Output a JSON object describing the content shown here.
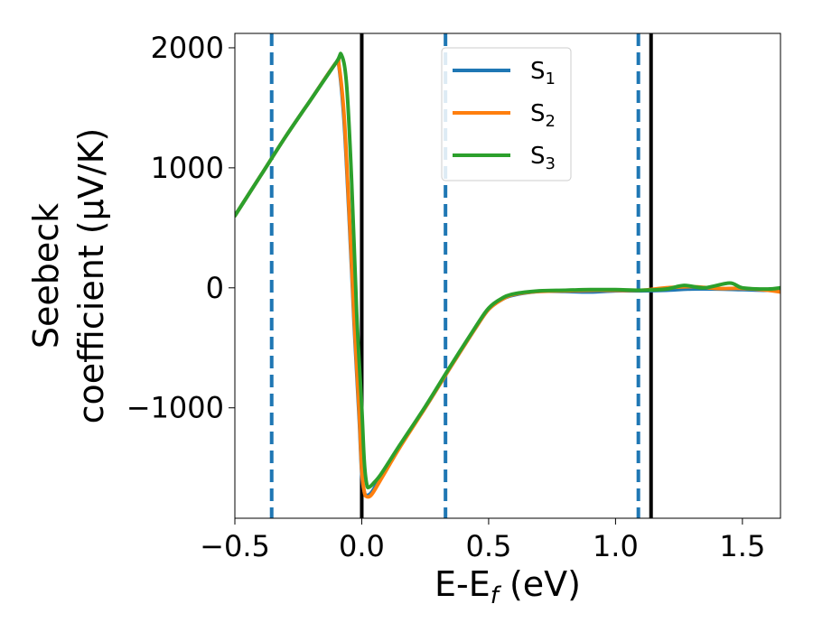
{
  "chart_data": {
    "type": "line",
    "xlabel": "E-E",
    "xlabel_sub": "f",
    "xlabel_unit": " (eV)",
    "ylabel_line1": "Seebeck",
    "ylabel_line2": "coefficient  (μV/K)",
    "xlim": [
      -0.5,
      1.65
    ],
    "ylim": [
      -1920,
      2120
    ],
    "x_ticks": [
      -0.5,
      0.0,
      0.5,
      1.0,
      1.5
    ],
    "x_tick_labels": [
      "−0.5",
      "0.0",
      "0.5",
      "1.0",
      "1.5"
    ],
    "y_ticks": [
      -1000,
      0,
      1000,
      2000
    ],
    "y_tick_labels": [
      "−1000",
      "0",
      "1000",
      "2000"
    ],
    "grid": false,
    "legend_position": "top-center",
    "vlines_solid": [
      0.0,
      1.14
    ],
    "vlines_dashed": [
      -0.355,
      0.33,
      1.09
    ],
    "vline_solid_color": "#000000",
    "vline_dashed_color": "#1f77b4",
    "series": [
      {
        "name": "S",
        "subscript": "1",
        "color": "#1f77b4",
        "x": [
          -0.5,
          -0.4,
          -0.3,
          -0.2,
          -0.1,
          -0.09,
          -0.07,
          -0.05,
          -0.03,
          -0.01,
          0.0,
          0.01,
          0.02,
          0.04,
          0.08,
          0.15,
          0.25,
          0.35,
          0.45,
          0.5,
          0.55,
          0.6,
          0.7,
          0.8,
          0.9,
          1.0,
          1.1,
          1.2,
          1.3,
          1.4,
          1.5,
          1.6,
          1.65
        ],
        "y": [
          600,
          930,
          1260,
          1570,
          1880,
          1850,
          1400,
          600,
          -300,
          -1100,
          -1550,
          -1700,
          -1730,
          -1700,
          -1560,
          -1320,
          -1000,
          -660,
          -330,
          -180,
          -100,
          -60,
          -30,
          -30,
          -35,
          -25,
          -25,
          -20,
          -10,
          -10,
          -15,
          -20,
          -15
        ]
      },
      {
        "name": "S",
        "subscript": "2",
        "color": "#ff7f0e",
        "x": [
          -0.5,
          -0.4,
          -0.3,
          -0.2,
          -0.1,
          -0.09,
          -0.07,
          -0.05,
          -0.03,
          -0.01,
          0.0,
          0.01,
          0.02,
          0.04,
          0.08,
          0.15,
          0.25,
          0.35,
          0.45,
          0.5,
          0.55,
          0.6,
          0.7,
          0.8,
          0.9,
          1.0,
          1.1,
          1.2,
          1.3,
          1.4,
          1.5,
          1.6,
          1.65
        ],
        "y": [
          600,
          930,
          1260,
          1570,
          1880,
          1860,
          1450,
          650,
          -250,
          -1050,
          -1520,
          -1700,
          -1740,
          -1720,
          -1580,
          -1330,
          -1000,
          -660,
          -330,
          -180,
          -100,
          -55,
          -30,
          -25,
          -20,
          -20,
          -20,
          0,
          10,
          -5,
          -5,
          -20,
          -35
        ]
      },
      {
        "name": "S",
        "subscript": "3",
        "color": "#2ca02c",
        "x": [
          -0.5,
          -0.4,
          -0.3,
          -0.2,
          -0.1,
          -0.08,
          -0.06,
          -0.04,
          -0.02,
          0.0,
          0.01,
          0.02,
          0.03,
          0.05,
          0.08,
          0.15,
          0.25,
          0.35,
          0.45,
          0.5,
          0.55,
          0.6,
          0.7,
          0.8,
          0.9,
          1.0,
          1.1,
          1.2,
          1.27,
          1.35,
          1.45,
          1.5,
          1.6,
          1.65
        ],
        "y": [
          600,
          930,
          1260,
          1570,
          1880,
          1940,
          1700,
          900,
          -200,
          -1000,
          -1450,
          -1640,
          -1660,
          -1620,
          -1540,
          -1310,
          -990,
          -650,
          -320,
          -170,
          -90,
          -50,
          -25,
          -20,
          -15,
          -15,
          -20,
          -10,
          20,
          0,
          40,
          0,
          -10,
          0
        ]
      }
    ]
  }
}
